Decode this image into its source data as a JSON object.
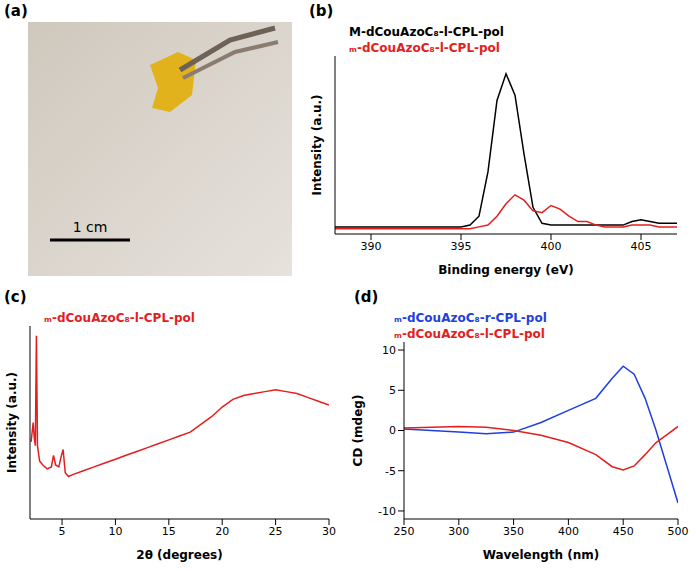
{
  "chart_data": [
    {
      "panel": "(a)",
      "type": "image",
      "annotations": [
        "1 cm"
      ]
    },
    {
      "panel": "(b)",
      "type": "line",
      "xlabel": "Binding energy (eV)",
      "ylabel": "Intensity (a.u.)",
      "x": [
        388,
        388.5,
        389,
        389.5,
        390,
        390.5,
        391,
        391.5,
        392,
        392.5,
        393,
        393.5,
        394,
        394.5,
        395,
        395.5,
        396,
        396.5,
        397,
        397.5,
        398,
        398.5,
        399,
        399.5,
        400,
        400.5,
        401,
        401.5,
        402,
        402.5,
        403,
        403.5,
        404,
        404.5,
        405,
        405.5,
        406,
        406.5,
        407
      ],
      "series": [
        {
          "name": "M-dCouAzoC₈-l-CPL-pol",
          "color": "#000000",
          "values": [
            4,
            4,
            4,
            4,
            4,
            4,
            4,
            4,
            4,
            4,
            4,
            4,
            4,
            4,
            4,
            5,
            10,
            35,
            75,
            90,
            78,
            45,
            15,
            6,
            5,
            5,
            5,
            5,
            5,
            5,
            5,
            5,
            5,
            7,
            8,
            7,
            6,
            6,
            6
          ]
        },
        {
          "name": "ₘ-dCouAzoC₈-l-CPL-pol",
          "color": "#e31e1e",
          "values": [
            3,
            3,
            3,
            3,
            3,
            3,
            3,
            3,
            3,
            3,
            3,
            3,
            3,
            3,
            3,
            3,
            4,
            5,
            10,
            17,
            22,
            19,
            13,
            12,
            16,
            14,
            10,
            7,
            7,
            5,
            4,
            4,
            4,
            5,
            5,
            5,
            4,
            4,
            4
          ]
        }
      ],
      "xlim": [
        388,
        407
      ],
      "xticks": [
        390,
        395,
        400,
        405
      ],
      "ylim": [
        0,
        100
      ],
      "tick_labels": "x",
      "legend": "top"
    },
    {
      "panel": "(c)",
      "type": "line",
      "xlabel": "2θ (degrees)",
      "ylabel": "Intensity (a.u.)",
      "x": [
        2.1,
        2.3,
        2.4,
        2.5,
        2.6,
        2.7,
        2.9,
        3.2,
        3.6,
        4.0,
        4.2,
        4.4,
        4.7,
        4.9,
        5.1,
        5.3,
        5.6,
        6,
        7,
        8,
        9,
        10,
        11,
        12,
        13,
        14,
        15,
        16,
        17,
        18,
        19,
        20,
        21,
        22,
        23,
        24,
        25,
        26,
        27,
        28,
        29,
        30
      ],
      "series": [
        {
          "name": "ₘ-dCouAzoC₈-l-CPL-pol",
          "color": "#e31e1e",
          "values": [
            40,
            50,
            42,
            38,
            95,
            38,
            30,
            28,
            26,
            27,
            33,
            28,
            27,
            32,
            36,
            24,
            22,
            23,
            25,
            27,
            29,
            31,
            33,
            35,
            37,
            39,
            41,
            43,
            45,
            49,
            53,
            58,
            62,
            64,
            65,
            66,
            67,
            66,
            65,
            63,
            61,
            59
          ]
        }
      ],
      "xlim": [
        2,
        30
      ],
      "xticks": [
        5,
        10,
        15,
        20,
        25,
        30
      ],
      "ylim": [
        0,
        100
      ],
      "tick_labels": "x",
      "legend": "top"
    },
    {
      "panel": "(d)",
      "type": "line",
      "xlabel": "Wavelength (nm)",
      "ylabel": "CD (mdeg)",
      "x": [
        250,
        275,
        300,
        325,
        350,
        375,
        400,
        425,
        440,
        450,
        460,
        470,
        480,
        490,
        500
      ],
      "series": [
        {
          "name": "ₘ-dCouAzoC₈-r-CPL-pol",
          "color": "#1f3fe0",
          "values": [
            0.2,
            0,
            -0.2,
            -0.4,
            -0.2,
            1,
            2.5,
            4,
            6.5,
            8,
            7,
            4,
            0,
            -4.5,
            -9
          ]
        },
        {
          "name": "ₘ-dCouAzoC₈-l-CPL-pol",
          "color": "#e31e1e",
          "values": [
            0.3,
            0.4,
            0.5,
            0.4,
            0,
            -0.6,
            -1.5,
            -3,
            -4.5,
            -4.9,
            -4.4,
            -3,
            -1.5,
            -0.5,
            0.5
          ]
        }
      ],
      "xlim": [
        250,
        500
      ],
      "xticks": [
        250,
        300,
        350,
        400,
        450,
        500
      ],
      "ylim": [
        -11,
        11
      ],
      "yticks": [
        -10,
        -5,
        0,
        5,
        10
      ],
      "legend": "top"
    }
  ]
}
